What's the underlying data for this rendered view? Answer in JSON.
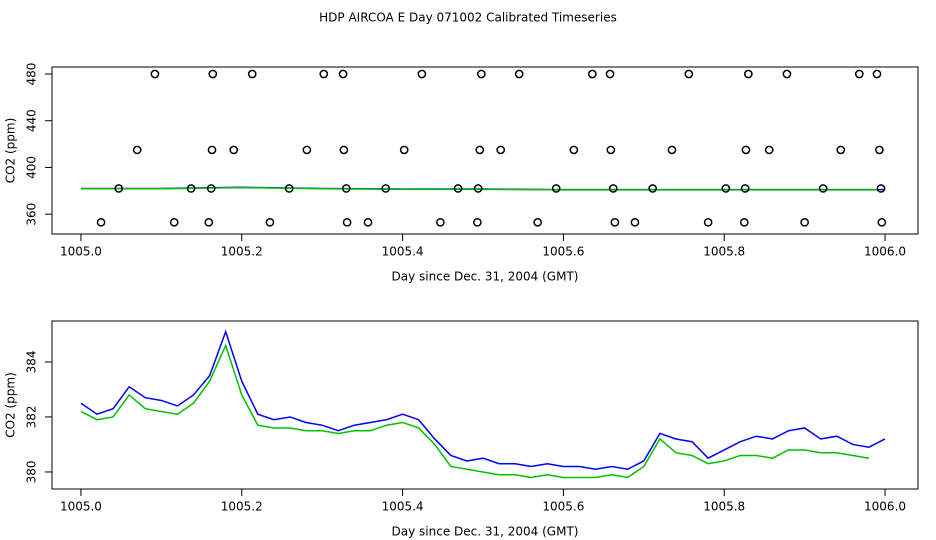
{
  "title": "HDP AIRCOA E  Day 071002  Calibrated Timeseries",
  "chart_data": [
    {
      "type": "scatter",
      "x_label": "Day since Dec. 31, 2004 (GMT)",
      "y_label": "CO2 (ppm)",
      "xlim": [
        1004.964,
        1006.041
      ],
      "ylim": [
        343,
        486
      ],
      "xticks": [
        {
          "value": 1005.0,
          "label": "1005.0"
        },
        {
          "value": 1005.2,
          "label": "1005.2"
        },
        {
          "value": 1005.4,
          "label": "1005.4"
        },
        {
          "value": 1005.6,
          "label": "1005.6"
        },
        {
          "value": 1005.8,
          "label": "1005.8"
        },
        {
          "value": 1006.0,
          "label": "1006.0"
        }
      ],
      "yticks": [
        360,
        400,
        440,
        480
      ],
      "series": [
        {
          "type": "scatter",
          "color": "#000000",
          "x": [
            1005.092,
            1005.164,
            1005.213,
            1005.302,
            1005.326,
            1005.424,
            1005.498,
            1005.545,
            1005.636,
            1005.658,
            1005.756,
            1005.83,
            1005.878,
            1005.968,
            1005.99,
            1005.07,
            1005.163,
            1005.19,
            1005.281,
            1005.327,
            1005.402,
            1005.496,
            1005.522,
            1005.613,
            1005.659,
            1005.735,
            1005.827,
            1005.856,
            1005.945,
            1005.993,
            1005.047,
            1005.137,
            1005.162,
            1005.259,
            1005.33,
            1005.379,
            1005.469,
            1005.494,
            1005.591,
            1005.662,
            1005.711,
            1005.802,
            1005.826,
            1005.923,
            1005.995,
            1005.025,
            1005.116,
            1005.159,
            1005.235,
            1005.331,
            1005.357,
            1005.447,
            1005.493,
            1005.568,
            1005.664,
            1005.689,
            1005.78,
            1005.825,
            1005.9,
            1005.996
          ],
          "values": [
            480,
            480,
            480,
            480,
            480,
            480,
            480,
            480,
            480,
            480,
            480,
            480,
            480,
            480,
            480,
            415,
            415,
            415,
            415,
            415,
            415,
            415,
            415,
            415,
            415,
            415,
            415,
            415,
            415,
            415,
            382,
            382,
            382,
            382,
            382,
            382,
            382,
            382,
            382,
            382,
            382,
            382,
            382,
            382,
            382,
            353,
            353,
            353,
            353,
            353,
            353,
            353,
            353,
            353,
            353,
            353,
            353,
            353,
            353,
            353
          ]
        },
        {
          "type": "line",
          "color": "#0000ff",
          "x": [
            1005.0,
            1005.1,
            1005.2,
            1005.3,
            1005.4,
            1005.5,
            1005.6,
            1005.7,
            1005.8,
            1005.9,
            1006.0
          ],
          "values": [
            382,
            382,
            383,
            382,
            381.5,
            381.5,
            381,
            381,
            381,
            381,
            381
          ]
        },
        {
          "type": "line",
          "color": "#00c000",
          "x": [
            1005.0,
            1005.1,
            1005.2,
            1005.3,
            1005.4,
            1005.5,
            1005.6,
            1005.7,
            1005.8,
            1005.9,
            1005.99
          ],
          "values": [
            381.8,
            381.8,
            382.7,
            381.8,
            381.3,
            381.2,
            380.8,
            380.8,
            380.8,
            380.8,
            380.8
          ]
        }
      ]
    },
    {
      "type": "line",
      "x_label": "Day since Dec. 31, 2004 (GMT)",
      "y_label": "CO2 (ppm)",
      "xlim": [
        1004.964,
        1006.041
      ],
      "ylim": [
        379.38,
        385.49
      ],
      "xticks": [
        {
          "value": 1005.0,
          "label": "1005.0"
        },
        {
          "value": 1005.2,
          "label": "1005.2"
        },
        {
          "value": 1005.4,
          "label": "1005.4"
        },
        {
          "value": 1005.6,
          "label": "1005.6"
        },
        {
          "value": 1005.8,
          "label": "1005.8"
        },
        {
          "value": 1006.0,
          "label": "1006.0"
        }
      ],
      "yticks": [
        380,
        382,
        384
      ],
      "x": [
        1005.0,
        1005.02,
        1005.04,
        1005.06,
        1005.08,
        1005.1,
        1005.12,
        1005.14,
        1005.16,
        1005.18,
        1005.2,
        1005.22,
        1005.24,
        1005.26,
        1005.28,
        1005.3,
        1005.32,
        1005.34,
        1005.36,
        1005.38,
        1005.4,
        1005.42,
        1005.44,
        1005.46,
        1005.48,
        1005.5,
        1005.52,
        1005.54,
        1005.56,
        1005.58,
        1005.6,
        1005.62,
        1005.64,
        1005.66,
        1005.68,
        1005.7,
        1005.72,
        1005.74,
        1005.76,
        1005.78,
        1005.8,
        1005.82,
        1005.84,
        1005.86,
        1005.88,
        1005.9,
        1005.92,
        1005.94,
        1005.96,
        1005.98,
        1006.0
      ],
      "series": [
        {
          "color": "#0000ff",
          "values": [
            382.5,
            382.1,
            382.3,
            383.1,
            382.7,
            382.6,
            382.4,
            382.8,
            383.5,
            385.1,
            383.3,
            382.1,
            381.9,
            382.0,
            381.8,
            381.7,
            381.5,
            381.7,
            381.8,
            381.9,
            382.1,
            381.9,
            381.2,
            380.6,
            380.4,
            380.5,
            380.3,
            380.3,
            380.2,
            380.3,
            380.2,
            380.2,
            380.1,
            380.2,
            380.1,
            380.4,
            381.4,
            381.2,
            381.1,
            380.5,
            380.8,
            381.1,
            381.3,
            381.2,
            381.5,
            381.6,
            381.2,
            381.3,
            381.0,
            380.9,
            381.2
          ]
        },
        {
          "color": "#00c000",
          "values": [
            382.2,
            381.9,
            382.0,
            382.8,
            382.3,
            382.2,
            382.1,
            382.5,
            383.3,
            384.6,
            382.8,
            381.7,
            381.6,
            381.6,
            381.5,
            381.5,
            381.4,
            381.5,
            381.5,
            381.7,
            381.8,
            381.6,
            381.0,
            380.2,
            380.1,
            380.0,
            379.9,
            379.9,
            379.8,
            379.9,
            379.8,
            379.8,
            379.8,
            379.9,
            379.8,
            380.2,
            381.2,
            380.7,
            380.6,
            380.3,
            380.4,
            380.6,
            380.6,
            380.5,
            380.8,
            380.8,
            380.7,
            380.7,
            380.6,
            380.5,
            null
          ]
        }
      ]
    }
  ]
}
